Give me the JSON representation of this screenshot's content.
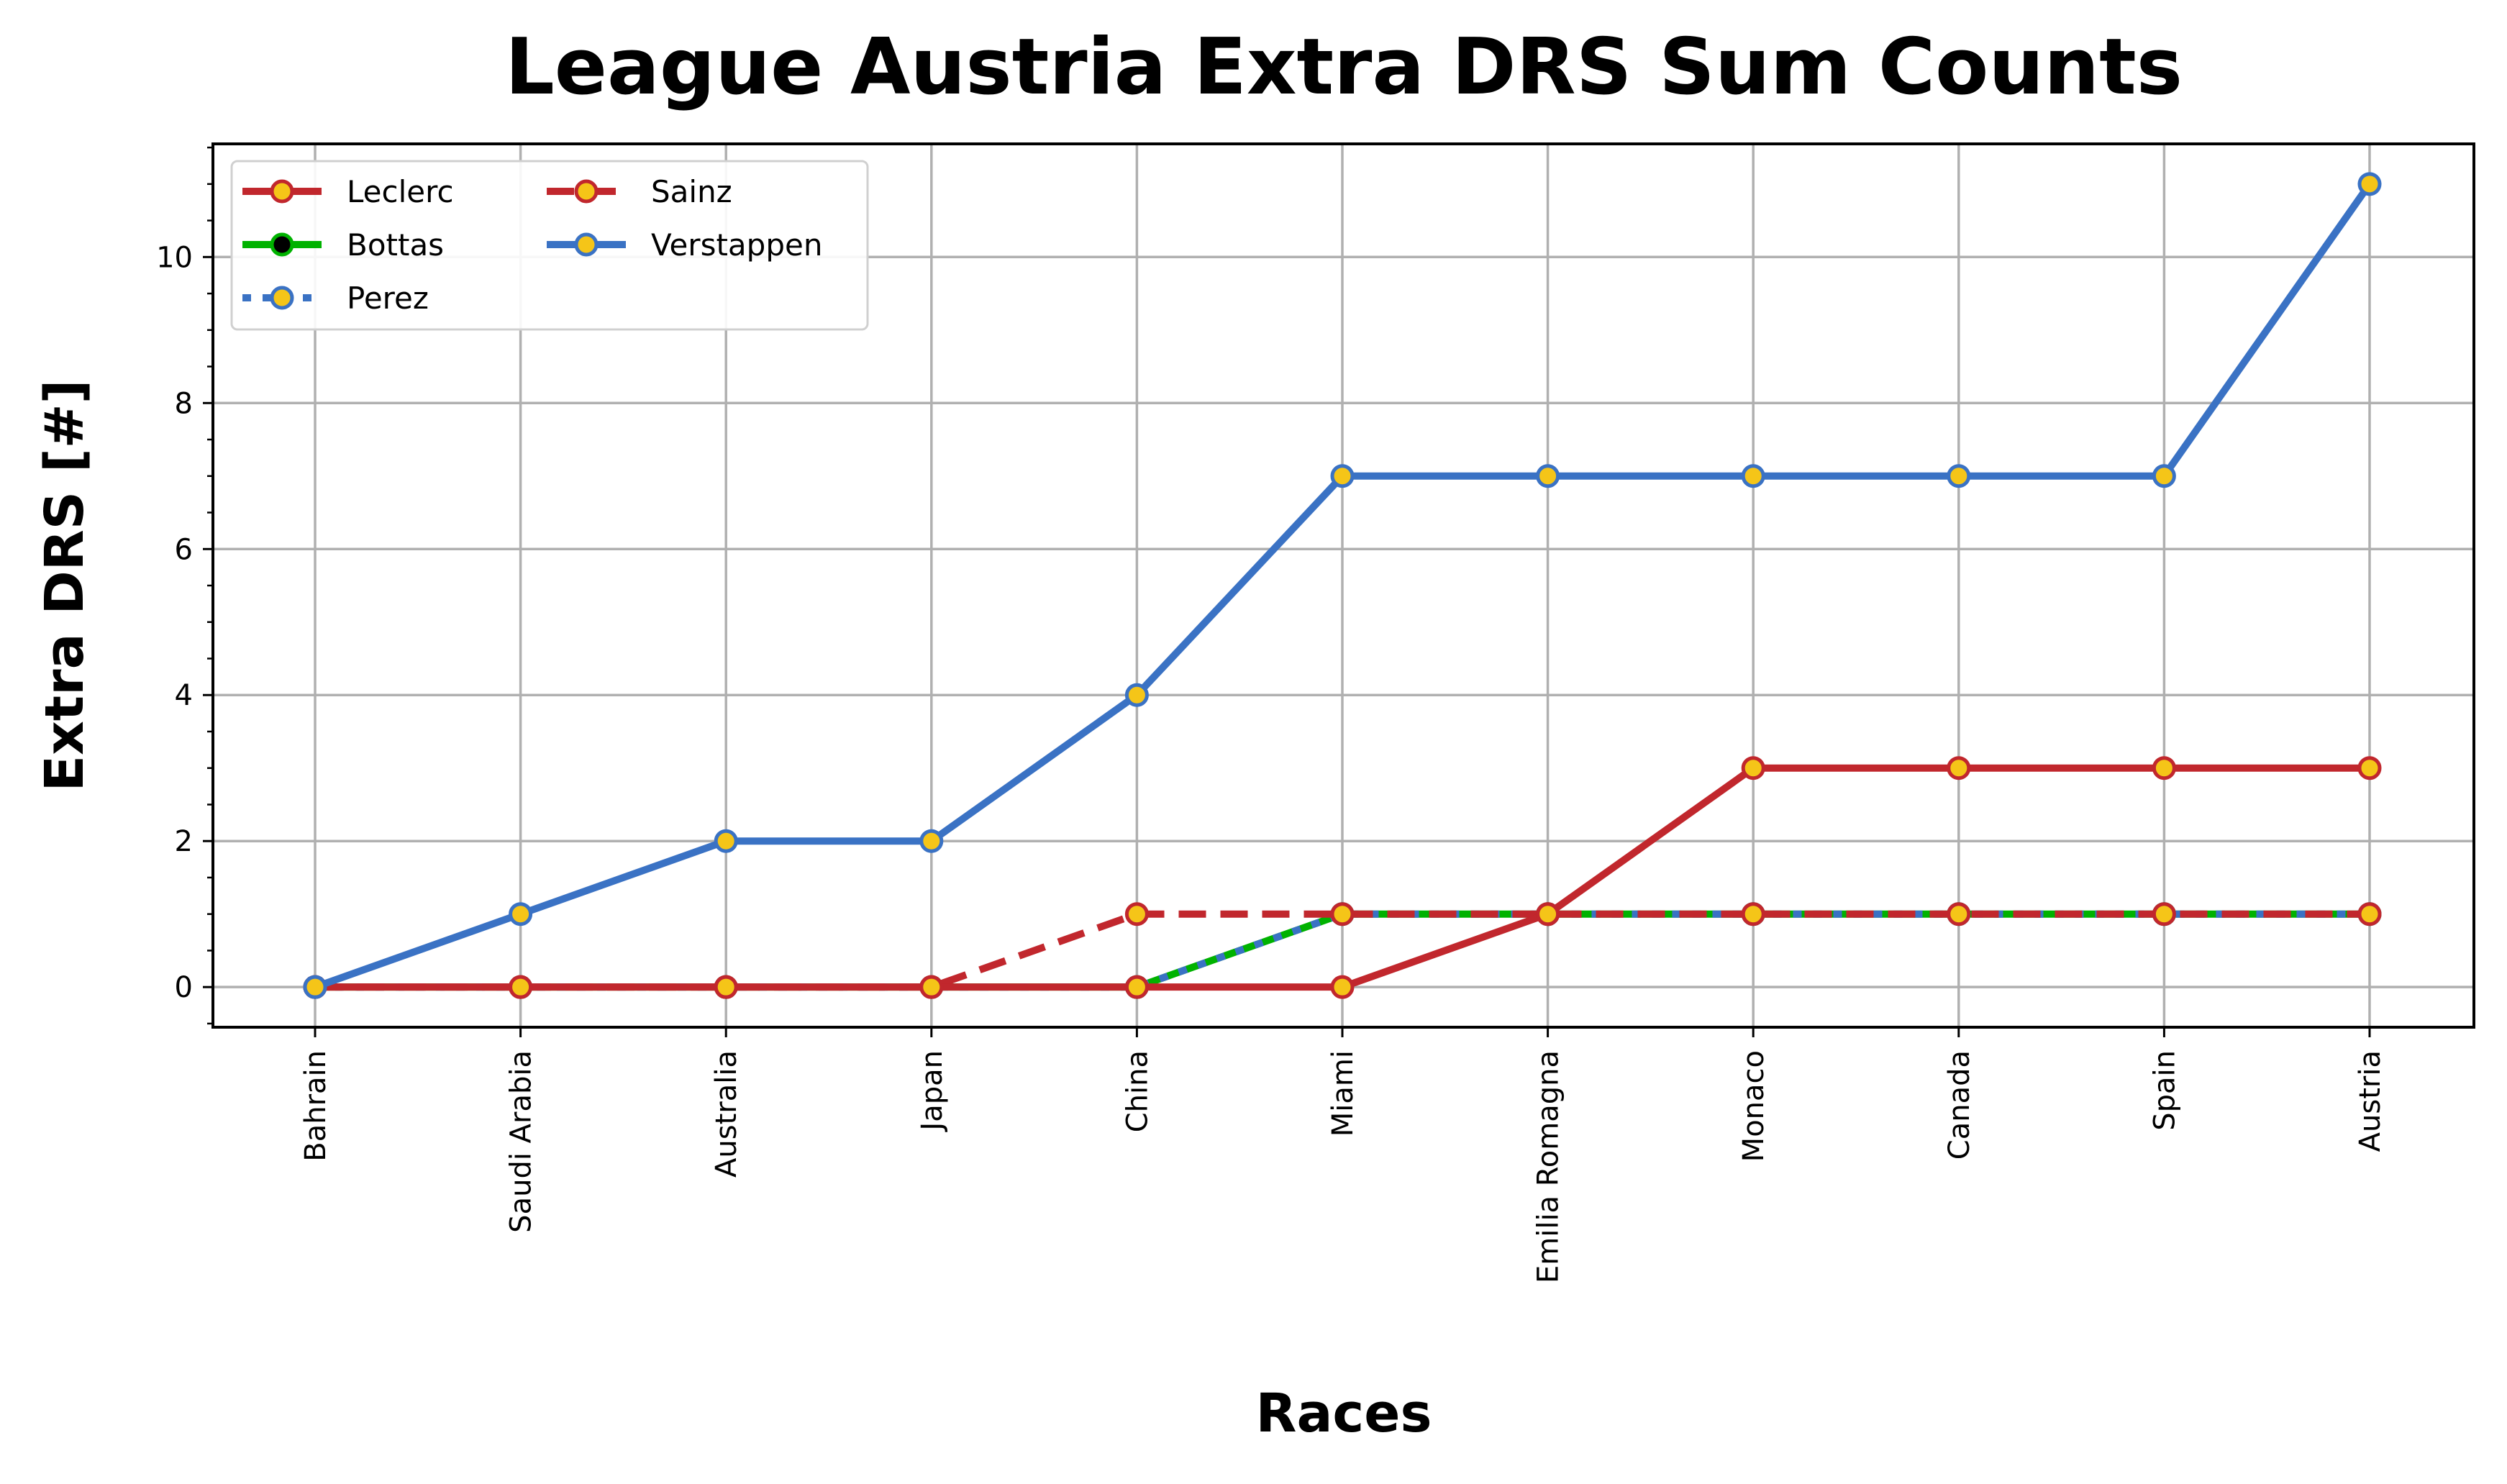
{
  "chart_data": {
    "type": "line",
    "title": "League Austria Extra DRS Sum Counts",
    "xlabel": "Races",
    "ylabel": "Extra DRS [#]",
    "categories": [
      "Bahrain",
      "Saudi Arabia",
      "Australia",
      "Japan",
      "China",
      "Miami",
      "Emilia Romagna",
      "Monaco",
      "Canada",
      "Spain",
      "Austria"
    ],
    "ylim": [
      -0.55,
      11.55
    ],
    "yticks": [
      0,
      2,
      4,
      6,
      8,
      10
    ],
    "grid": true,
    "legend_position": "upper-left",
    "legend_columns": 2,
    "series": [
      {
        "name": "Leclerc",
        "values": [
          0,
          0,
          0,
          0,
          0,
          0,
          1,
          3,
          3,
          3,
          3
        ],
        "color": "#c1272d",
        "dash": "solid",
        "marker_fill": "#f5c518",
        "marker_edge": "#c1272d"
      },
      {
        "name": "Bottas",
        "values": [
          0,
          0,
          0,
          0,
          0,
          1,
          1,
          1,
          1,
          1,
          1
        ],
        "color": "#00b200",
        "dash": "solid",
        "marker_fill": "#000000",
        "marker_edge": "#00b200"
      },
      {
        "name": "Perez",
        "values": [
          0,
          0,
          0,
          0,
          0,
          1,
          1,
          1,
          1,
          1,
          1
        ],
        "color": "#3a72c4",
        "dash": "dotted",
        "marker_fill": "#f5c518",
        "marker_edge": "#3a72c4"
      },
      {
        "name": "Sainz",
        "values": [
          0,
          0,
          0,
          0,
          1,
          1,
          1,
          1,
          1,
          1,
          1
        ],
        "color": "#c1272d",
        "dash": "dashed",
        "marker_fill": "#f5c518",
        "marker_edge": "#c1272d"
      },
      {
        "name": "Verstappen",
        "values": [
          0,
          1,
          2,
          2,
          4,
          7,
          7,
          7,
          7,
          7,
          11
        ],
        "color": "#3a72c4",
        "dash": "solid",
        "marker_fill": "#f5c518",
        "marker_edge": "#3a72c4"
      }
    ],
    "draw_order": [
      "Bottas",
      "Perez",
      "Sainz",
      "Leclerc",
      "Verstappen"
    ]
  }
}
